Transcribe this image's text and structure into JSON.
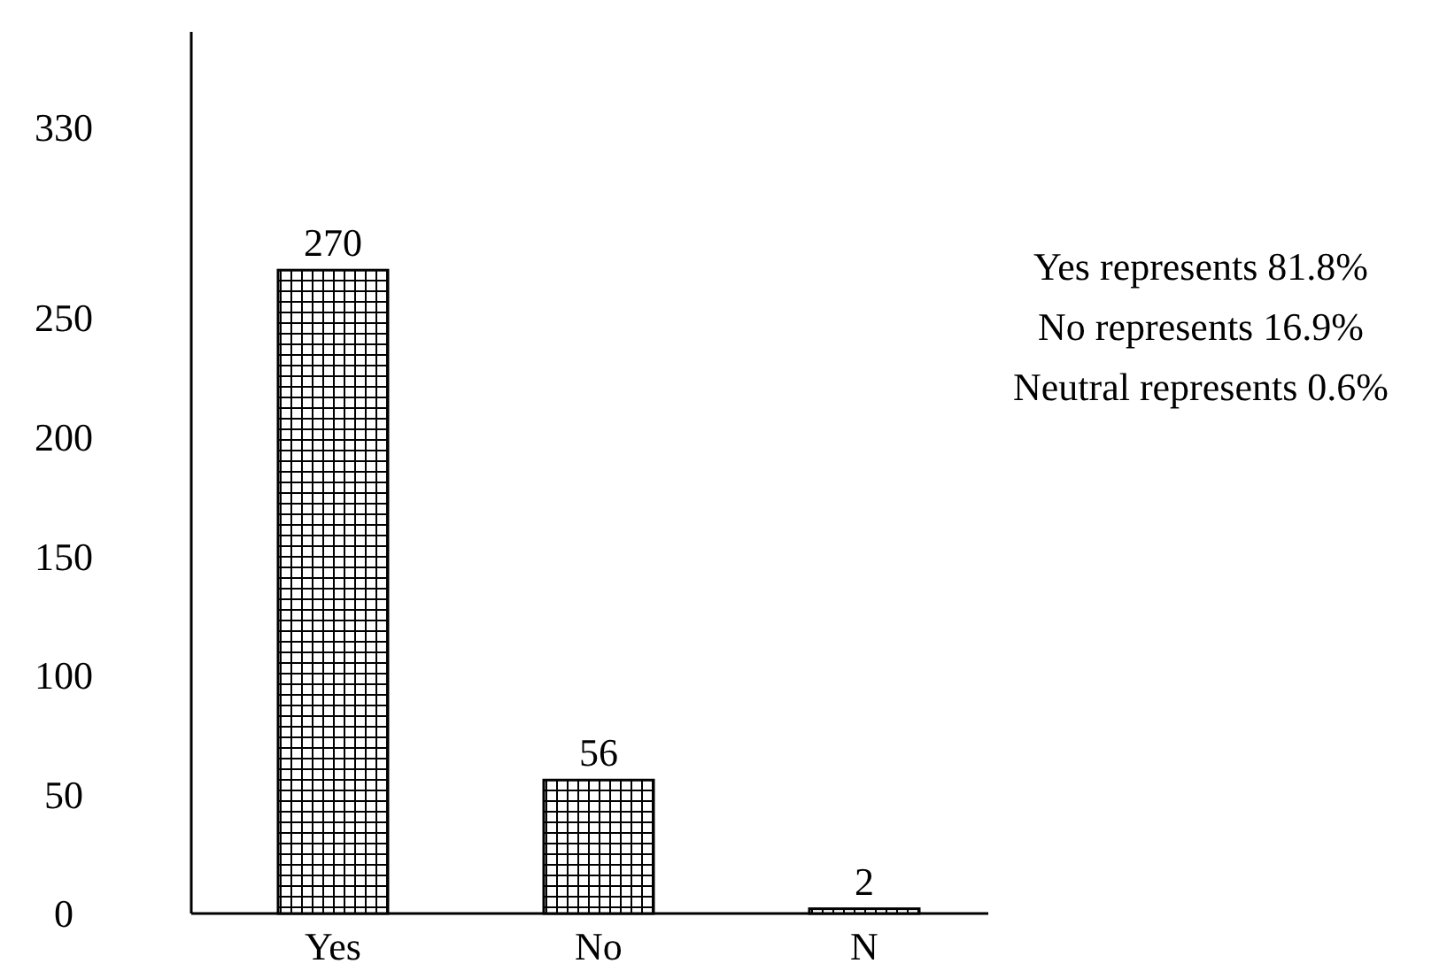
{
  "chart_data": {
    "type": "bar",
    "categories": [
      "Yes",
      "No",
      "N"
    ],
    "values": [
      270,
      56,
      2
    ],
    "color": "#000000",
    "data_labels": true,
    "ylim": [
      0,
      370
    ],
    "yticks": [
      0,
      50,
      100,
      150,
      200,
      250,
      330
    ],
    "annotations": [
      "Yes represents 81.8%",
      "No represents 16.9%",
      "Neutral represents 0.6%"
    ]
  }
}
